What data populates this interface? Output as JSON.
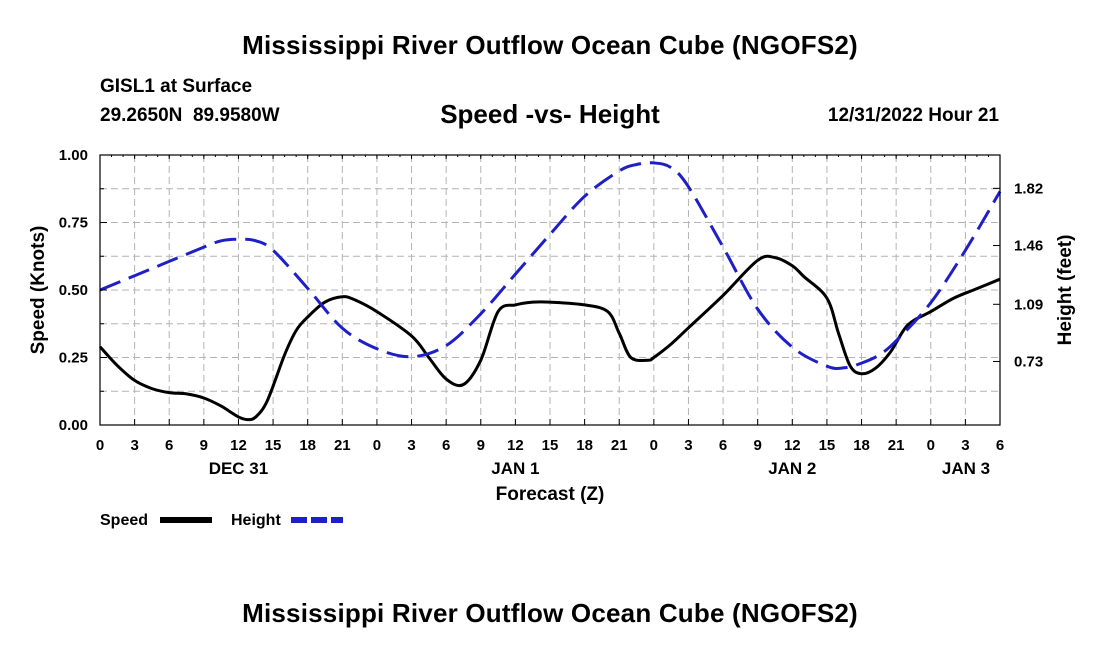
{
  "page": {
    "title_top": "Mississippi River Outflow Ocean Cube (NGOFS2)",
    "title_bottom": "Mississippi River Outflow Ocean Cube (NGOFS2)",
    "station": "GISL1 at Surface",
    "coordinates": "29.2650N  89.9580W",
    "datetime": "12/31/2022 Hour 21"
  },
  "chart_data": {
    "type": "line",
    "title": "Speed -vs- Height",
    "xlabel": "Forecast (Z)",
    "ylabel": "Speed (Knots)",
    "y2label": "Height (feet)",
    "ylim": [
      0,
      1
    ],
    "y2lim": [
      0.33,
      2.03
    ],
    "grid": true,
    "x_hours_from_start": [
      0,
      3,
      6,
      9,
      12,
      15,
      18,
      21,
      24,
      27,
      30,
      33,
      36,
      39,
      42,
      45,
      48,
      51,
      54,
      57,
      60,
      63,
      66,
      69,
      72,
      75,
      78
    ],
    "x_tick_labels": [
      "0",
      "3",
      "6",
      "9",
      "12",
      "15",
      "18",
      "21",
      "0",
      "3",
      "6",
      "9",
      "12",
      "15",
      "18",
      "21",
      "0",
      "3",
      "6",
      "9",
      "12",
      "15",
      "18",
      "21",
      "0",
      "3",
      "6"
    ],
    "y_ticks": [
      0,
      0.25,
      0.5,
      0.75,
      1
    ],
    "y_tick_labels": [
      "0.00",
      "0.25",
      "0.50",
      "0.75",
      "1.00"
    ],
    "y2_ticks": [
      0.73,
      1.09,
      1.46,
      1.82
    ],
    "y2_tick_labels": [
      "0.73",
      "1.09",
      "1.46",
      "1.82"
    ],
    "date_labels": [
      {
        "label": "DEC 31",
        "hour": 12
      },
      {
        "label": "JAN 1",
        "hour": 36
      },
      {
        "label": "JAN 2",
        "hour": 60
      },
      {
        "label": "JAN 3",
        "hour": 78
      }
    ],
    "series": [
      {
        "name": "Speed",
        "axis": "left",
        "color": "#000000",
        "style": "solid",
        "x": [
          0,
          1.5,
          3,
          4.5,
          6,
          7.5,
          9,
          10.5,
          12,
          12.8,
          13.5,
          14.5,
          16,
          17,
          18,
          19.5,
          21,
          22,
          24,
          27,
          28.5,
          30,
          31.5,
          33,
          34.5,
          36,
          37.5,
          39,
          42,
          44,
          45,
          46,
          47.5,
          48,
          49.5,
          51,
          54,
          57,
          58.5,
          60,
          61,
          63,
          64,
          65,
          66,
          67.2,
          68.5,
          70,
          72,
          74,
          76,
          78
        ],
        "values": [
          0.29,
          0.22,
          0.165,
          0.135,
          0.12,
          0.115,
          0.1,
          0.07,
          0.03,
          0.02,
          0.03,
          0.09,
          0.26,
          0.35,
          0.4,
          0.455,
          0.475,
          0.465,
          0.42,
          0.33,
          0.25,
          0.17,
          0.15,
          0.24,
          0.42,
          0.445,
          0.455,
          0.455,
          0.445,
          0.42,
          0.34,
          0.25,
          0.24,
          0.25,
          0.3,
          0.36,
          0.48,
          0.61,
          0.62,
          0.59,
          0.55,
          0.47,
          0.34,
          0.22,
          0.19,
          0.21,
          0.27,
          0.37,
          0.42,
          0.47,
          0.505,
          0.54
        ]
      },
      {
        "name": "Height",
        "axis": "right",
        "color": "#1f1fc8",
        "style": "dashed",
        "x": [
          0,
          3,
          6,
          9,
          10.5,
          12,
          13.5,
          15,
          18,
          21,
          24,
          27,
          30,
          33,
          36,
          39,
          42,
          45,
          46.5,
          48,
          49.5,
          51,
          54,
          57,
          60,
          63,
          64.5,
          66,
          67.5,
          69,
          72,
          75,
          78
        ],
        "values": [
          1.18,
          1.27,
          1.36,
          1.45,
          1.49,
          1.5,
          1.49,
          1.43,
          1.19,
          0.94,
          0.81,
          0.76,
          0.83,
          1.03,
          1.28,
          1.53,
          1.77,
          1.93,
          1.97,
          1.98,
          1.95,
          1.83,
          1.45,
          1.06,
          0.82,
          0.7,
          0.69,
          0.72,
          0.77,
          0.86,
          1.1,
          1.43,
          1.8
        ]
      }
    ]
  }
}
